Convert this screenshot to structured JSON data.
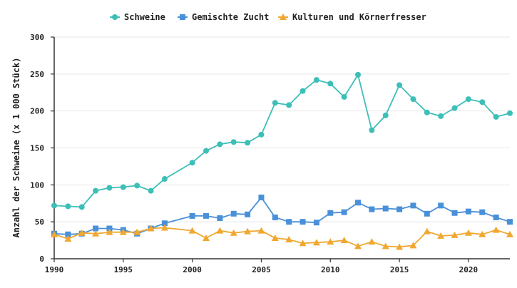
{
  "chart_data": {
    "type": "line",
    "title": "",
    "xlabel": "",
    "ylabel": "Anzahl der Schweine (x 1 000 Stück)",
    "xlim": [
      1990,
      2023
    ],
    "ylim": [
      0,
      300
    ],
    "xticks": [
      1990,
      1995,
      2000,
      2005,
      2010,
      2015,
      2020
    ],
    "yticks": [
      0,
      50,
      100,
      150,
      200,
      250,
      300
    ],
    "grid": "horizontal",
    "legend_position": "top-center",
    "series": [
      {
        "name": "Schweine",
        "color": "#3dbfb8",
        "marker": "circle",
        "x": [
          1990,
          1991,
          1992,
          1993,
          1994,
          1995,
          1996,
          1997,
          1998,
          2000,
          2001,
          2002,
          2003,
          2004,
          2005,
          2006,
          2007,
          2008,
          2009,
          2010,
          2011,
          2012,
          2013,
          2014,
          2015,
          2016,
          2017,
          2018,
          2019,
          2020,
          2021,
          2022,
          2023
        ],
        "values": [
          72,
          71,
          70,
          92,
          96,
          97,
          99,
          92,
          108,
          130,
          146,
          155,
          158,
          157,
          168,
          211,
          208,
          227,
          242,
          237,
          219,
          249,
          174,
          194,
          235,
          216,
          198,
          193,
          204,
          216,
          212,
          192,
          197
        ]
      },
      {
        "name": "Gemischte Zucht",
        "color": "#4a90d9",
        "marker": "square",
        "x": [
          1990,
          1991,
          1992,
          1993,
          1994,
          1995,
          1996,
          1997,
          1998,
          2000,
          2001,
          2002,
          2003,
          2004,
          2005,
          2006,
          2007,
          2008,
          2009,
          2010,
          2011,
          2012,
          2013,
          2014,
          2015,
          2016,
          2017,
          2018,
          2019,
          2020,
          2021,
          2022,
          2023
        ],
        "values": [
          34,
          33,
          34,
          41,
          41,
          39,
          34,
          41,
          48,
          58,
          58,
          55,
          61,
          60,
          83,
          56,
          50,
          50,
          49,
          62,
          63,
          76,
          67,
          68,
          67,
          72,
          61,
          72,
          62,
          64,
          63,
          56,
          50
        ]
      },
      {
        "name": "Kulturen und Körnerfresser",
        "color": "#f0a830",
        "marker": "triangle",
        "x": [
          1990,
          1991,
          1992,
          1993,
          1994,
          1995,
          1996,
          1997,
          1998,
          2000,
          2001,
          2002,
          2003,
          2004,
          2005,
          2006,
          2007,
          2008,
          2009,
          2010,
          2011,
          2012,
          2013,
          2014,
          2015,
          2016,
          2017,
          2018,
          2019,
          2020,
          2021,
          2022,
          2023
        ],
        "values": [
          33,
          27,
          35,
          34,
          36,
          36,
          36,
          41,
          42,
          38,
          28,
          38,
          35,
          37,
          38,
          28,
          26,
          21,
          22,
          23,
          25,
          17,
          23,
          17,
          16,
          18,
          37,
          31,
          32,
          35,
          33,
          39,
          33
        ]
      }
    ]
  }
}
